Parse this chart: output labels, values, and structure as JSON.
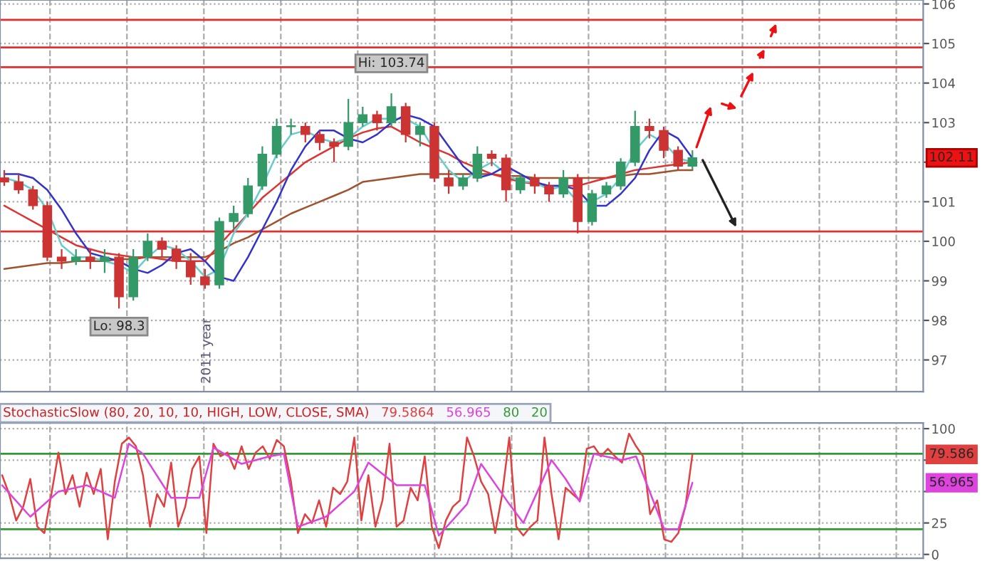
{
  "chart_data": [
    {
      "type": "candlestick",
      "categories": [
        null,
        null,
        null,
        null,
        null,
        null,
        null,
        null,
        null,
        null,
        null,
        null,
        null,
        null,
        null,
        null,
        null,
        null,
        null,
        null,
        null,
        null,
        null,
        null,
        null,
        null,
        null,
        null,
        null,
        null,
        null,
        null,
        null,
        null,
        null,
        null,
        null,
        null,
        null,
        null,
        null,
        null,
        null,
        null,
        null,
        null,
        null,
        null,
        null
      ],
      "ohlc": [
        [
          101.6,
          101.8,
          101.4,
          101.5
        ],
        [
          101.5,
          101.7,
          101.2,
          101.3
        ],
        [
          101.3,
          101.4,
          100.8,
          100.9
        ],
        [
          100.9,
          101.0,
          99.5,
          99.6
        ],
        [
          99.6,
          99.8,
          99.3,
          99.5
        ],
        [
          99.5,
          99.8,
          99.4,
          99.6
        ],
        [
          99.6,
          99.8,
          99.3,
          99.5
        ],
        [
          99.5,
          99.8,
          99.2,
          99.6
        ],
        [
          99.6,
          99.7,
          98.3,
          98.6
        ],
        [
          98.6,
          99.8,
          98.5,
          99.6
        ],
        [
          99.6,
          100.2,
          99.5,
          100.0
        ],
        [
          100.0,
          100.1,
          99.6,
          99.8
        ],
        [
          99.8,
          99.9,
          99.3,
          99.5
        ],
        [
          99.5,
          99.7,
          98.9,
          99.1
        ],
        [
          99.1,
          99.3,
          98.8,
          98.9
        ],
        [
          98.9,
          100.6,
          98.8,
          100.5
        ],
        [
          100.5,
          100.9,
          100.3,
          100.7
        ],
        [
          100.7,
          101.6,
          100.6,
          101.4
        ],
        [
          101.4,
          102.4,
          101.3,
          102.2
        ],
        [
          102.2,
          103.1,
          102.1,
          102.9
        ],
        [
          102.9,
          103.1,
          102.7,
          102.9
        ],
        [
          102.9,
          103.0,
          102.5,
          102.7
        ],
        [
          102.7,
          102.8,
          102.3,
          102.5
        ],
        [
          102.5,
          102.6,
          102.0,
          102.4
        ],
        [
          102.4,
          103.6,
          102.3,
          103.0
        ],
        [
          103.0,
          103.4,
          102.9,
          103.2
        ],
        [
          103.2,
          103.3,
          102.8,
          103.0
        ],
        [
          103.0,
          103.74,
          102.9,
          103.4
        ],
        [
          103.4,
          103.5,
          102.5,
          102.7
        ],
        [
          102.7,
          103.0,
          102.4,
          102.9
        ],
        [
          102.9,
          103.0,
          101.5,
          101.6
        ],
        [
          101.6,
          101.8,
          101.2,
          101.4
        ],
        [
          101.4,
          101.7,
          101.3,
          101.6
        ],
        [
          101.6,
          102.4,
          101.5,
          102.2
        ],
        [
          102.2,
          102.3,
          101.9,
          102.1
        ],
        [
          102.1,
          102.2,
          101.0,
          101.3
        ],
        [
          101.3,
          101.7,
          101.2,
          101.6
        ],
        [
          101.6,
          101.7,
          101.2,
          101.4
        ],
        [
          101.4,
          101.5,
          101.0,
          101.2
        ],
        [
          101.2,
          101.8,
          101.1,
          101.6
        ],
        [
          101.6,
          101.7,
          100.2,
          100.5
        ],
        [
          100.5,
          101.3,
          100.4,
          101.2
        ],
        [
          101.2,
          101.5,
          101.1,
          101.4
        ],
        [
          101.4,
          102.1,
          101.3,
          102.0
        ],
        [
          102.0,
          103.3,
          101.9,
          102.9
        ],
        [
          102.9,
          103.1,
          102.6,
          102.8
        ],
        [
          102.8,
          102.9,
          102.1,
          102.3
        ],
        [
          102.3,
          102.4,
          101.8,
          101.9
        ],
        [
          101.9,
          102.3,
          101.8,
          102.11
        ]
      ],
      "colors": [
        "#cc3333",
        "#cc3333",
        "#cc3333",
        "#cc3333",
        "#cc3333",
        "#339966",
        "#cc3333",
        "#339966",
        "#cc3333",
        "#339966",
        "#339966",
        "#cc3333",
        "#cc3333",
        "#cc3333",
        "#cc3333",
        "#339966",
        "#339966",
        "#339966",
        "#339966",
        "#339966",
        "#339966",
        "#cc3333",
        "#cc3333",
        "#cc3333",
        "#339966",
        "#339966",
        "#cc3333",
        "#339966",
        "#cc3333",
        "#339966",
        "#cc3333",
        "#cc3333",
        "#339966",
        "#339966",
        "#cc3333",
        "#cc3333",
        "#339966",
        "#cc3333",
        "#cc3333",
        "#339966",
        "#cc3333",
        "#339966",
        "#339966",
        "#339966",
        "#339966",
        "#cc3333",
        "#cc3333",
        "#cc3333",
        "#339966"
      ],
      "series": [
        {
          "type": "line",
          "color": "#a0522d",
          "values": [
            99.3,
            99.35,
            99.4,
            99.45,
            99.45,
            99.5,
            99.5,
            99.5,
            99.55,
            99.55,
            99.6,
            99.6,
            99.6,
            99.6,
            99.6,
            99.75,
            99.95,
            100.1,
            100.3,
            100.5,
            100.7,
            100.85,
            101.0,
            101.15,
            101.3,
            101.5,
            101.55,
            101.6,
            101.65,
            101.7,
            101.7,
            101.7,
            101.7,
            101.7,
            101.7,
            101.65,
            101.65,
            101.6,
            101.6,
            101.6,
            101.6,
            101.6,
            101.6,
            101.65,
            101.7,
            101.7,
            101.75,
            101.8,
            101.8
          ]
        },
        {
          "type": "line",
          "color": "#dd3333",
          "values": [
            100.9,
            100.7,
            100.5,
            100.3,
            100.1,
            99.9,
            99.8,
            99.7,
            99.65,
            99.6,
            99.6,
            99.55,
            99.5,
            99.5,
            99.5,
            99.9,
            100.3,
            100.7,
            101.1,
            101.4,
            101.7,
            102.0,
            102.2,
            102.4,
            102.6,
            102.75,
            102.85,
            102.9,
            102.7,
            102.5,
            102.35,
            102.2,
            102.0,
            101.85,
            101.7,
            101.6,
            101.5,
            101.45,
            101.4,
            101.4,
            101.4,
            101.5,
            101.6,
            101.7,
            101.8,
            101.85,
            101.9,
            101.95,
            102.0
          ]
        },
        {
          "type": "line",
          "color": "#66cccc",
          "values": [
            101.6,
            101.5,
            101.3,
            100.8,
            99.9,
            99.6,
            99.6,
            99.5,
            99.4,
            99.2,
            99.6,
            99.9,
            99.8,
            99.5,
            99.1,
            99.3,
            100.2,
            100.7,
            101.4,
            102.2,
            102.7,
            102.8,
            102.6,
            102.5,
            102.6,
            102.9,
            103.1,
            103.1,
            103.1,
            102.9,
            102.3,
            101.8,
            101.5,
            101.8,
            102.0,
            101.7,
            101.5,
            101.5,
            101.3,
            101.4,
            101.0,
            101.0,
            101.2,
            101.6,
            102.3,
            102.7,
            102.5,
            102.1,
            102.0
          ]
        },
        {
          "type": "line",
          "color": "#3333cc",
          "values": [
            101.7,
            101.7,
            101.6,
            101.3,
            100.8,
            100.2,
            99.7,
            99.6,
            99.5,
            99.3,
            99.2,
            99.4,
            99.7,
            99.8,
            99.5,
            99.1,
            99.0,
            99.6,
            100.3,
            101.0,
            101.8,
            102.4,
            102.8,
            102.8,
            102.6,
            102.5,
            102.7,
            103.0,
            103.2,
            103.1,
            102.9,
            102.4,
            101.9,
            101.6,
            101.7,
            101.9,
            101.7,
            101.5,
            101.4,
            101.4,
            101.3,
            100.9,
            100.9,
            101.2,
            101.6,
            102.3,
            102.8,
            102.6,
            102.1
          ]
        }
      ],
      "ylim": [
        96.2,
        106.1
      ],
      "yticks": [
        97,
        98,
        99,
        100,
        101,
        {
          "value": 102,
          "label": null
        },
        103,
        104,
        105,
        106
      ],
      "grid": true,
      "tick_labels": "y",
      "ref_lines": [
        {
          "axis": "y",
          "value": 105.6,
          "color": "#e03030"
        },
        {
          "axis": "y",
          "value": 104.9,
          "color": "#e03030"
        },
        {
          "axis": "y",
          "value": 104.4,
          "color": "#e03030"
        },
        {
          "axis": "y",
          "value": 100.25,
          "color": "#e03030"
        }
      ],
      "annotations": [
        {
          "text": "Hi: 103.74",
          "y": 103.74
        },
        {
          "text": "Lo: 98.3",
          "y": 98.3
        },
        "2011 year",
        "102.11"
      ]
    },
    {
      "type": "line",
      "title": "StochasticSlow (80, 20, 10, 10, HIGH, LOW, CLOSE, SMA)",
      "categories": [
        null,
        null,
        null,
        null,
        null,
        null,
        null,
        null,
        null,
        null,
        null,
        null,
        null,
        null,
        null,
        null,
        null,
        null,
        null,
        null,
        null,
        null,
        null,
        null,
        null,
        null,
        null,
        null,
        null,
        null,
        null,
        null,
        null,
        null,
        null,
        null,
        null,
        null,
        null,
        null,
        null,
        null,
        null,
        null,
        null,
        null,
        null,
        null,
        null,
        null,
        null,
        null,
        null,
        null,
        null,
        null,
        null,
        null,
        null,
        null,
        null,
        null,
        null,
        null,
        null,
        null,
        null,
        null,
        null,
        null,
        null,
        null,
        null,
        null,
        null,
        null,
        null,
        null,
        null,
        null,
        null,
        null,
        null,
        null,
        null,
        null,
        null,
        null,
        null,
        null,
        null,
        null,
        null,
        null,
        null,
        null,
        null,
        null,
        null
      ],
      "series": [
        {
          "color": "#e04040",
          "values": [
            63,
            48,
            27,
            38,
            60,
            22,
            17,
            48,
            81,
            48,
            63,
            38,
            65,
            48,
            68,
            12,
            58,
            88,
            93,
            86,
            63,
            22,
            48,
            38,
            73,
            22,
            38,
            68,
            78,
            17,
            88,
            78,
            81,
            68,
            86,
            68,
            81,
            86,
            76,
            91,
            86,
            58,
            17,
            32,
            25,
            43,
            22,
            53,
            48,
            58,
            93,
            27,
            63,
            22,
            43,
            88,
            22,
            27,
            53,
            43,
            78,
            22,
            5,
            27,
            38,
            43,
            93,
            78,
            58,
            48,
            17,
            48,
            93,
            22,
            15,
            22,
            27,
            93,
            48,
            12,
            53,
            48,
            43,
            84,
            86,
            78,
            84,
            78,
            73,
            96,
            86,
            78,
            32,
            43,
            12,
            10,
            17,
            38,
            79.5864
          ]
        },
        {
          "color": "#dd44dd",
          "values": [
            55,
            null,
            null,
            null,
            30,
            null,
            null,
            null,
            50,
            null,
            null,
            null,
            55,
            null,
            null,
            null,
            45,
            null,
            88,
            null,
            80,
            null,
            null,
            null,
            45,
            null,
            null,
            null,
            45,
            null,
            85,
            null,
            null,
            null,
            72,
            null,
            null,
            null,
            78,
            null,
            80,
            null,
            22,
            null,
            null,
            null,
            30,
            null,
            null,
            null,
            50,
            null,
            73,
            null,
            null,
            null,
            55,
            null,
            null,
            null,
            55,
            null,
            15,
            null,
            null,
            null,
            40,
            null,
            72,
            null,
            null,
            null,
            40,
            null,
            25,
            null,
            null,
            null,
            75,
            null,
            60,
            null,
            42,
            null,
            80,
            null,
            null,
            null,
            75,
            null,
            78,
            null,
            null,
            null,
            20,
            null,
            20,
            null,
            56.965
          ]
        }
      ],
      "ylim": [
        -3,
        104.5
      ],
      "yticks": [
        0,
        25,
        {
          "value": 50,
          "label": null
        },
        {
          "value": 75,
          "label": null
        },
        100
      ],
      "grid": true,
      "tick_labels": "y",
      "ref_lines": [
        {
          "axis": "y",
          "value": 80,
          "label": "80",
          "color": "#339933"
        },
        {
          "axis": "y",
          "value": 20,
          "label": "20",
          "color": "#339933"
        }
      ],
      "annotations": [
        "79.5864",
        "56.965",
        "79.586",
        "56.965"
      ]
    }
  ]
}
